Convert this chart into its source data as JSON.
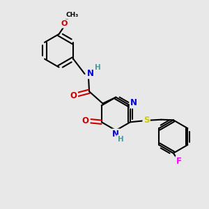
{
  "bg_color": "#e8e8e8",
  "atom_colors": {
    "C": "#000000",
    "N": "#0000cc",
    "O": "#cc0000",
    "S": "#cccc00",
    "F": "#ff00ff",
    "H": "#4a9a9a"
  },
  "bond_color": "#000000",
  "bond_width": 1.5,
  "figsize": [
    3.0,
    3.0
  ],
  "dpi": 100
}
